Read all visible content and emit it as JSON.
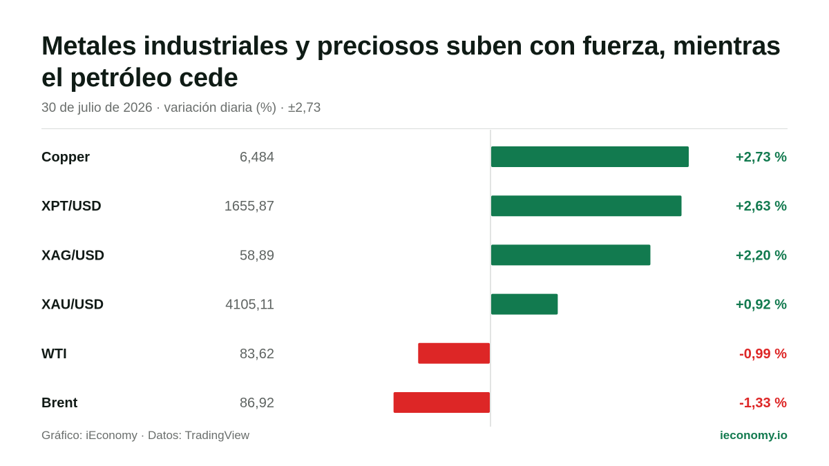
{
  "header": {
    "title": "Metales industriales y preciosos suben con fuerza, mientras el petróleo cede",
    "subtitle": "30 de julio de 2026 · variación diaria (%) · ±2,73"
  },
  "footer": {
    "credit": "Gráfico: iEconomy · Datos: TradingView",
    "brand": "ieconomy.io"
  },
  "colors": {
    "positive": "#127a4f",
    "negative": "#dd2626",
    "label": "#111a16",
    "price": "#5f6462",
    "axis": "#d9dcda"
  },
  "chart_data": {
    "type": "bar",
    "orientation": "horizontal",
    "value_unit": "%",
    "xlim": [
      -2.73,
      2.73
    ],
    "categories": [
      "Copper",
      "XPT/USD",
      "XAG/USD",
      "XAU/USD",
      "WTI",
      "Brent"
    ],
    "prices": [
      "6,484",
      "1655,87",
      "58,89",
      "4105,11",
      "83,62",
      "86,92"
    ],
    "values": [
      2.73,
      2.63,
      2.2,
      0.92,
      -0.99,
      -1.33
    ],
    "value_labels": [
      "+2,73 %",
      "+2,63 %",
      "+2,20 %",
      "+0,92 %",
      "-0,99 %",
      "-1,33 %"
    ]
  }
}
